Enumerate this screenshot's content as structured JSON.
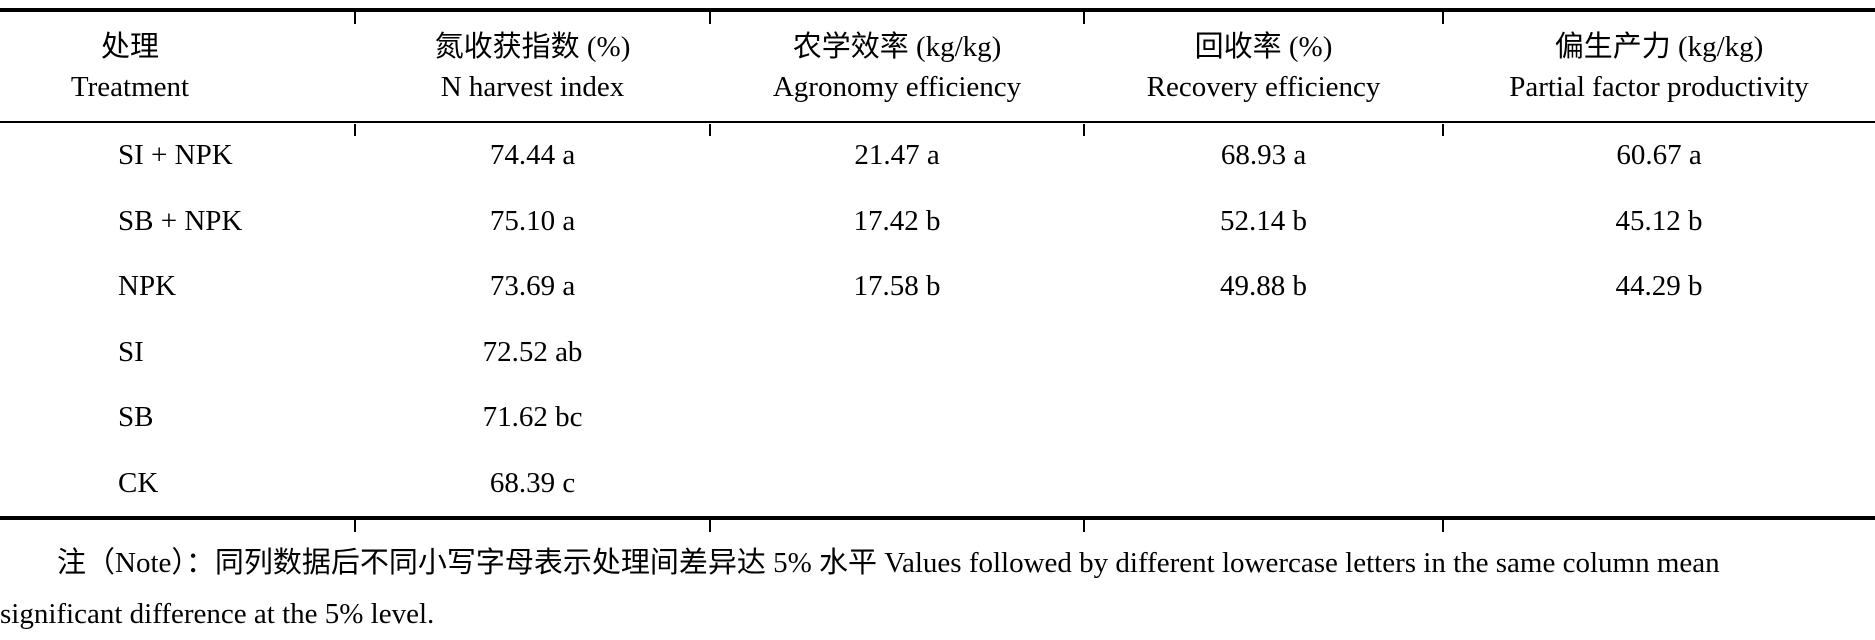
{
  "table": {
    "columns": [
      {
        "zh": "处理",
        "en": "Treatment"
      },
      {
        "zh": "氮收获指数 (%)",
        "en": "N harvest index"
      },
      {
        "zh": "农学效率 (kg/kg)",
        "en": "Agronomy efficiency"
      },
      {
        "zh": "回收率 (%)",
        "en": "Recovery efficiency"
      },
      {
        "zh": "偏生产力 (kg/kg)",
        "en": "Partial factor productivity"
      }
    ],
    "rows": [
      [
        "SI + NPK",
        "74.44 a",
        "21.47 a",
        "68.93 a",
        "60.67 a"
      ],
      [
        "SB + NPK",
        "75.10 a",
        "17.42 b",
        "52.14 b",
        "45.12 b"
      ],
      [
        "NPK",
        "73.69 a",
        "17.58 b",
        "49.88 b",
        "44.29 b"
      ],
      [
        "SI",
        "72.52 ab",
        "",
        "",
        ""
      ],
      [
        "SB",
        "71.62 bc",
        "",
        "",
        ""
      ],
      [
        "CK",
        "68.39 c",
        "",
        "",
        ""
      ]
    ]
  },
  "note": {
    "line1": "注（Note）：同列数据后不同小写字母表示处理间差异达 5% 水平 Values followed by different lowercase letters in the same column mean",
    "line2": "significant difference at the 5% level."
  }
}
